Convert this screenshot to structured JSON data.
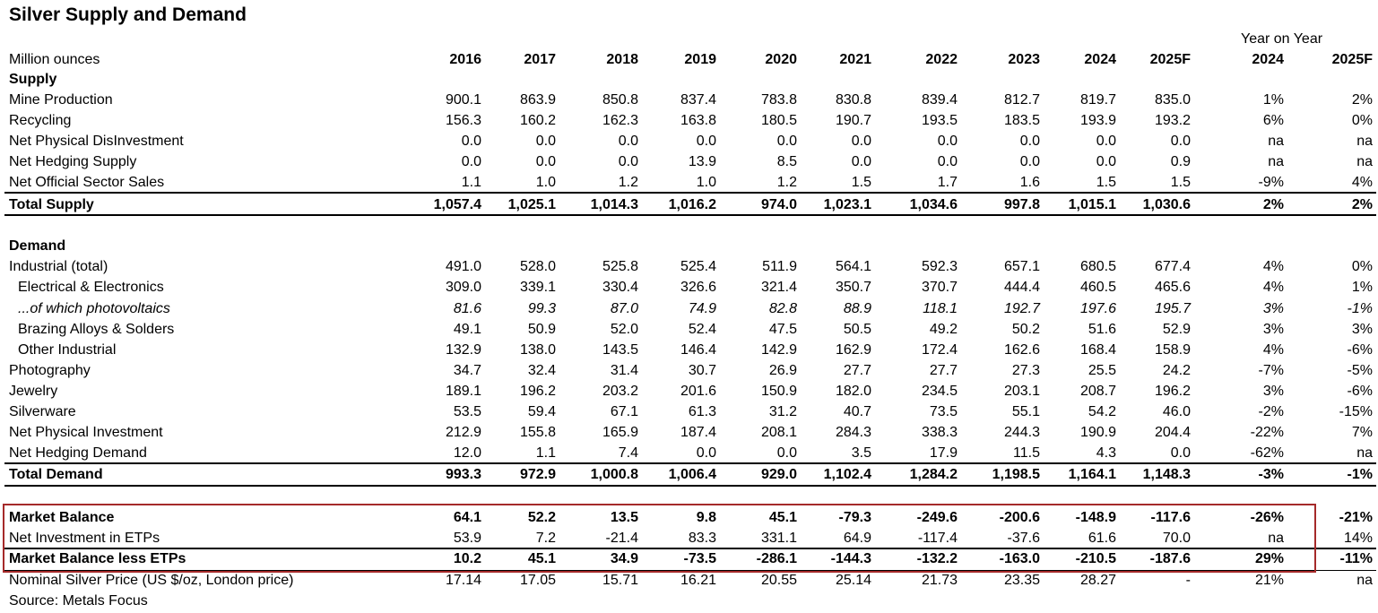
{
  "header": {
    "title": "Silver Supply and Demand",
    "unit": "Million ounces",
    "years": [
      "2016",
      "2017",
      "2018",
      "2019",
      "2020",
      "2021",
      "2022",
      "2023",
      "2024",
      "2025F"
    ],
    "yoy_group": "Year on Year",
    "yoy_years": [
      "2024",
      "2025F"
    ]
  },
  "table": {
    "rows": [
      {
        "label": "Supply"
      },
      {
        "label": "Mine Production",
        "cells": [
          "900.1",
          "863.9",
          "850.8",
          "837.4",
          "783.8",
          "830.8",
          "839.4",
          "812.7",
          "819.7",
          "835.0",
          "1%",
          "2%"
        ]
      },
      {
        "label": "Recycling",
        "cells": [
          "156.3",
          "160.2",
          "162.3",
          "163.8",
          "180.5",
          "190.7",
          "193.5",
          "183.5",
          "193.9",
          "193.2",
          "6%",
          "0%"
        ]
      },
      {
        "label": "Net Physical DisInvestment",
        "cells": [
          "0.0",
          "0.0",
          "0.0",
          "0.0",
          "0.0",
          "0.0",
          "0.0",
          "0.0",
          "0.0",
          "0.0",
          "na",
          "na"
        ]
      },
      {
        "label": "Net Hedging Supply",
        "cells": [
          "0.0",
          "0.0",
          "0.0",
          "13.9",
          "8.5",
          "0.0",
          "0.0",
          "0.0",
          "0.0",
          "0.9",
          "na",
          "na"
        ]
      },
      {
        "label": "Net Official Sector Sales",
        "cells": [
          "1.1",
          "1.0",
          "1.2",
          "1.0",
          "1.2",
          "1.5",
          "1.7",
          "1.6",
          "1.5",
          "1.5",
          "-9%",
          "4%"
        ]
      },
      {
        "label": "Total Supply",
        "cells": [
          "1,057.4",
          "1,025.1",
          "1,014.3",
          "1,016.2",
          "974.0",
          "1,023.1",
          "1,034.6",
          "997.8",
          "1,015.1",
          "1,030.6",
          "2%",
          "2%"
        ]
      },
      {
        "label": "Demand"
      },
      {
        "label": "Industrial (total)",
        "cells": [
          "491.0",
          "528.0",
          "525.8",
          "525.4",
          "511.9",
          "564.1",
          "592.3",
          "657.1",
          "680.5",
          "677.4",
          "4%",
          "0%"
        ]
      },
      {
        "label": "Electrical & Electronics",
        "cells": [
          "309.0",
          "339.1",
          "330.4",
          "326.6",
          "321.4",
          "350.7",
          "370.7",
          "444.4",
          "460.5",
          "465.6",
          "4%",
          "1%"
        ]
      },
      {
        "label": "...of which photovoltaics",
        "cells": [
          "81.6",
          "99.3",
          "87.0",
          "74.9",
          "82.8",
          "88.9",
          "118.1",
          "192.7",
          "197.6",
          "195.7",
          "3%",
          "-1%"
        ]
      },
      {
        "label": "Brazing Alloys & Solders",
        "cells": [
          "49.1",
          "50.9",
          "52.0",
          "52.4",
          "47.5",
          "50.5",
          "49.2",
          "50.2",
          "51.6",
          "52.9",
          "3%",
          "3%"
        ]
      },
      {
        "label": "Other Industrial",
        "cells": [
          "132.9",
          "138.0",
          "143.5",
          "146.4",
          "142.9",
          "162.9",
          "172.4",
          "162.6",
          "168.4",
          "158.9",
          "4%",
          "-6%"
        ]
      },
      {
        "label": "Photography",
        "cells": [
          "34.7",
          "32.4",
          "31.4",
          "30.7",
          "26.9",
          "27.7",
          "27.7",
          "27.3",
          "25.5",
          "24.2",
          "-7%",
          "-5%"
        ]
      },
      {
        "label": "Jewelry",
        "cells": [
          "189.1",
          "196.2",
          "203.2",
          "201.6",
          "150.9",
          "182.0",
          "234.5",
          "203.1",
          "208.7",
          "196.2",
          "3%",
          "-6%"
        ]
      },
      {
        "label": "Silverware",
        "cells": [
          "53.5",
          "59.4",
          "67.1",
          "61.3",
          "31.2",
          "40.7",
          "73.5",
          "55.1",
          "54.2",
          "46.0",
          "-2%",
          "-15%"
        ]
      },
      {
        "label": "Net Physical Investment",
        "cells": [
          "212.9",
          "155.8",
          "165.9",
          "187.4",
          "208.1",
          "284.3",
          "338.3",
          "244.3",
          "190.9",
          "204.4",
          "-22%",
          "7%"
        ]
      },
      {
        "label": "Net Hedging Demand",
        "cells": [
          "12.0",
          "1.1",
          "7.4",
          "0.0",
          "0.0",
          "3.5",
          "17.9",
          "11.5",
          "4.3",
          "0.0",
          "-62%",
          "na"
        ]
      },
      {
        "label": "Total Demand",
        "cells": [
          "993.3",
          "972.9",
          "1,000.8",
          "1,006.4",
          "929.0",
          "1,102.4",
          "1,284.2",
          "1,198.5",
          "1,164.1",
          "1,148.3",
          "-3%",
          "-1%"
        ]
      },
      {
        "label": "Market Balance",
        "cells": [
          "64.1",
          "52.2",
          "13.5",
          "9.8",
          "45.1",
          "-79.3",
          "-249.6",
          "-200.6",
          "-148.9",
          "-117.6",
          "-26%",
          "-21%"
        ]
      },
      {
        "label": "Net Investment in ETPs",
        "cells": [
          "53.9",
          "7.2",
          "-21.4",
          "83.3",
          "331.1",
          "64.9",
          "-117.4",
          "-37.6",
          "61.6",
          "70.0",
          "na",
          "14%"
        ]
      },
      {
        "label": "Market Balance less ETPs",
        "cells": [
          "10.2",
          "45.1",
          "34.9",
          "-73.5",
          "-286.1",
          "-144.3",
          "-132.2",
          "-163.0",
          "-210.5",
          "-187.6",
          "29%",
          "-11%"
        ]
      },
      {
        "label": "Nominal Silver Price (US $/oz, London price)",
        "cells": [
          "17.14",
          "17.05",
          "15.71",
          "16.21",
          "20.55",
          "25.14",
          "21.73",
          "23.35",
          "28.27",
          "-",
          "21%",
          "na"
        ]
      }
    ]
  },
  "footer": {
    "source": "Source: Metals Focus"
  }
}
